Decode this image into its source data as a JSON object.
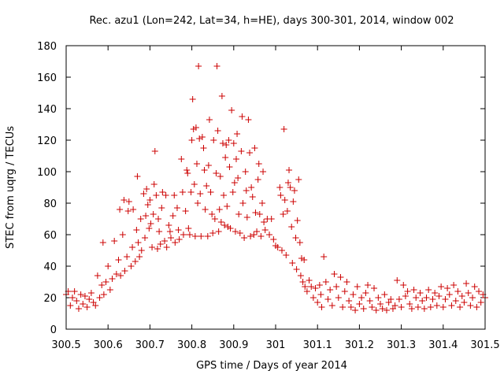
{
  "chart_data": {
    "type": "scatter",
    "title": "Rec. azu1 (Lon=242, Lat=34, h=HE), days 300-301, 2014, window 002",
    "xlabel": "GPS time / Days of year 2014",
    "ylabel": "STEC from uqrg / TECUs",
    "xlim": [
      300.5,
      301.5
    ],
    "ylim": [
      0,
      180
    ],
    "x_ticks": [
      300.5,
      300.6,
      300.7,
      300.8,
      300.9,
      301.0,
      301.1,
      301.2,
      301.3,
      301.4,
      301.5
    ],
    "x_tick_labels": [
      "300.5",
      "300.6",
      "300.7",
      "300.8",
      "300.9",
      "301",
      "301.1",
      "301.2",
      "301.3",
      "301.4",
      "301.5"
    ],
    "y_ticks": [
      0,
      20,
      40,
      60,
      80,
      100,
      120,
      140,
      160,
      180
    ],
    "y_tick_labels": [
      "0",
      "20",
      "40",
      "60",
      "80",
      "100",
      "120",
      "140",
      "160",
      "180"
    ],
    "grid": false,
    "marker": "+",
    "color": "#cc0000",
    "series": [
      {
        "name": "STEC",
        "points": [
          [
            300.5,
            22
          ],
          [
            300.505,
            24
          ],
          [
            300.51,
            15
          ],
          [
            300.515,
            20
          ],
          [
            300.52,
            24
          ],
          [
            300.525,
            18
          ],
          [
            300.53,
            13
          ],
          [
            300.535,
            22
          ],
          [
            300.54,
            16
          ],
          [
            300.545,
            21
          ],
          [
            300.55,
            14
          ],
          [
            300.555,
            19
          ],
          [
            300.56,
            23
          ],
          [
            300.565,
            17
          ],
          [
            300.57,
            15
          ],
          [
            300.575,
            34
          ],
          [
            300.58,
            20
          ],
          [
            300.585,
            28
          ],
          [
            300.588,
            55
          ],
          [
            300.59,
            22
          ],
          [
            300.595,
            30
          ],
          [
            300.6,
            40
          ],
          [
            300.605,
            25
          ],
          [
            300.61,
            32
          ],
          [
            300.615,
            56
          ],
          [
            300.62,
            35
          ],
          [
            300.625,
            44
          ],
          [
            300.628,
            76
          ],
          [
            300.63,
            34
          ],
          [
            300.635,
            60
          ],
          [
            300.638,
            82
          ],
          [
            300.64,
            37
          ],
          [
            300.645,
            46
          ],
          [
            300.648,
            75
          ],
          [
            300.65,
            81
          ],
          [
            300.655,
            40
          ],
          [
            300.658,
            52
          ],
          [
            300.66,
            76
          ],
          [
            300.665,
            43
          ],
          [
            300.668,
            63
          ],
          [
            300.67,
            97
          ],
          [
            300.672,
            55
          ],
          [
            300.675,
            46
          ],
          [
            300.678,
            70
          ],
          [
            300.68,
            50
          ],
          [
            300.685,
            86
          ],
          [
            300.688,
            58
          ],
          [
            300.69,
            72
          ],
          [
            300.692,
            89
          ],
          [
            300.695,
            79
          ],
          [
            300.698,
            64
          ],
          [
            300.7,
            82
          ],
          [
            300.702,
            67
          ],
          [
            300.705,
            52
          ],
          [
            300.708,
            73
          ],
          [
            300.71,
            92
          ],
          [
            300.712,
            113
          ],
          [
            300.715,
            85
          ],
          [
            300.718,
            51
          ],
          [
            300.72,
            70
          ],
          [
            300.722,
            62
          ],
          [
            300.725,
            54
          ],
          [
            300.728,
            77
          ],
          [
            300.73,
            87
          ],
          [
            300.735,
            56
          ],
          [
            300.738,
            85
          ],
          [
            300.74,
            52
          ],
          [
            300.745,
            66
          ],
          [
            300.748,
            62
          ],
          [
            300.75,
            58
          ],
          [
            300.755,
            72
          ],
          [
            300.758,
            85
          ],
          [
            300.76,
            55
          ],
          [
            300.765,
            77
          ],
          [
            300.768,
            63
          ],
          [
            300.77,
            57
          ],
          [
            300.775,
            108
          ],
          [
            300.778,
            87
          ],
          [
            300.78,
            60
          ],
          [
            300.785,
            75
          ],
          [
            300.788,
            101
          ],
          [
            300.79,
            99
          ],
          [
            300.792,
            64
          ],
          [
            300.795,
            60
          ],
          [
            300.798,
            87
          ],
          [
            300.8,
            120
          ],
          [
            300.802,
            146
          ],
          [
            300.804,
            127
          ],
          [
            300.806,
            92
          ],
          [
            300.808,
            59
          ],
          [
            300.81,
            128
          ],
          [
            300.812,
            105
          ],
          [
            300.814,
            80
          ],
          [
            300.816,
            167
          ],
          [
            300.818,
            121
          ],
          [
            300.82,
            86
          ],
          [
            300.822,
            59
          ],
          [
            300.825,
            122
          ],
          [
            300.828,
            115
          ],
          [
            300.83,
            101
          ],
          [
            300.832,
            76
          ],
          [
            300.835,
            91
          ],
          [
            300.838,
            59
          ],
          [
            300.84,
            104
          ],
          [
            300.842,
            133
          ],
          [
            300.845,
            87
          ],
          [
            300.848,
            73
          ],
          [
            300.85,
            61
          ],
          [
            300.852,
            120
          ],
          [
            300.855,
            70
          ],
          [
            300.858,
            99
          ],
          [
            300.86,
            167
          ],
          [
            300.862,
            126
          ],
          [
            300.864,
            62
          ],
          [
            300.866,
            76
          ],
          [
            300.868,
            97
          ],
          [
            300.87,
            68
          ],
          [
            300.872,
            148
          ],
          [
            300.874,
            118
          ],
          [
            300.876,
            85
          ],
          [
            300.878,
            66
          ],
          [
            300.88,
            109
          ],
          [
            300.882,
            117
          ],
          [
            300.884,
            78
          ],
          [
            300.886,
            65
          ],
          [
            300.888,
            120
          ],
          [
            300.89,
            103
          ],
          [
            300.892,
            64
          ],
          [
            300.895,
            139
          ],
          [
            300.898,
            87
          ],
          [
            300.9,
            118
          ],
          [
            300.902,
            93
          ],
          [
            300.904,
            62
          ],
          [
            300.906,
            108
          ],
          [
            300.908,
            124
          ],
          [
            300.91,
            96
          ],
          [
            300.912,
            73
          ],
          [
            300.915,
            61
          ],
          [
            300.918,
            113
          ],
          [
            300.92,
            135
          ],
          [
            300.922,
            80
          ],
          [
            300.925,
            58
          ],
          [
            300.928,
            100
          ],
          [
            300.93,
            88
          ],
          [
            300.932,
            71
          ],
          [
            300.935,
            133
          ],
          [
            300.938,
            112
          ],
          [
            300.94,
            59
          ],
          [
            300.942,
            90
          ],
          [
            300.945,
            84
          ],
          [
            300.948,
            60
          ],
          [
            300.95,
            115
          ],
          [
            300.952,
            74
          ],
          [
            300.955,
            62
          ],
          [
            300.958,
            95
          ],
          [
            300.96,
            105
          ],
          [
            300.962,
            73
          ],
          [
            300.965,
            59
          ],
          [
            300.968,
            80
          ],
          [
            300.97,
            100
          ],
          [
            300.972,
            68
          ],
          [
            300.975,
            63
          ],
          [
            300.98,
            70
          ],
          [
            300.985,
            60
          ],
          [
            300.99,
            70
          ],
          [
            300.995,
            57
          ],
          [
            301.0,
            53
          ],
          [
            301.005,
            52
          ],
          [
            301.01,
            90
          ],
          [
            301.012,
            85
          ],
          [
            301.015,
            50
          ],
          [
            301.018,
            73
          ],
          [
            301.02,
            127
          ],
          [
            301.022,
            82
          ],
          [
            301.025,
            47
          ],
          [
            301.028,
            75
          ],
          [
            301.03,
            93
          ],
          [
            301.032,
            101
          ],
          [
            301.035,
            90
          ],
          [
            301.038,
            65
          ],
          [
            301.04,
            42
          ],
          [
            301.042,
            81
          ],
          [
            301.045,
            88
          ],
          [
            301.048,
            58
          ],
          [
            301.05,
            38
          ],
          [
            301.052,
            69
          ],
          [
            301.055,
            95
          ],
          [
            301.058,
            55
          ],
          [
            301.06,
            34
          ],
          [
            301.062,
            45
          ],
          [
            301.065,
            30
          ],
          [
            301.068,
            44
          ],
          [
            301.07,
            27
          ],
          [
            301.075,
            24
          ],
          [
            301.08,
            31
          ],
          [
            301.085,
            27
          ],
          [
            301.09,
            20
          ],
          [
            301.095,
            26
          ],
          [
            301.1,
            17
          ],
          [
            301.105,
            28
          ],
          [
            301.108,
            22
          ],
          [
            301.11,
            14
          ],
          [
            301.115,
            46
          ],
          [
            301.12,
            30
          ],
          [
            301.125,
            19
          ],
          [
            301.13,
            25
          ],
          [
            301.135,
            15
          ],
          [
            301.14,
            35
          ],
          [
            301.145,
            27
          ],
          [
            301.15,
            20
          ],
          [
            301.155,
            33
          ],
          [
            301.16,
            14
          ],
          [
            301.165,
            24
          ],
          [
            301.17,
            30
          ],
          [
            301.175,
            18
          ],
          [
            301.18,
            14
          ],
          [
            301.185,
            22
          ],
          [
            301.19,
            12
          ],
          [
            301.195,
            27
          ],
          [
            301.2,
            16
          ],
          [
            301.205,
            20
          ],
          [
            301.21,
            13
          ],
          [
            301.215,
            23
          ],
          [
            301.22,
            28
          ],
          [
            301.225,
            18
          ],
          [
            301.23,
            14
          ],
          [
            301.235,
            26
          ],
          [
            301.24,
            12
          ],
          [
            301.245,
            20
          ],
          [
            301.25,
            16
          ],
          [
            301.255,
            13
          ],
          [
            301.26,
            22
          ],
          [
            301.265,
            12
          ],
          [
            301.27,
            17
          ],
          [
            301.275,
            19
          ],
          [
            301.28,
            13
          ],
          [
            301.285,
            15
          ],
          [
            301.29,
            31
          ],
          [
            301.295,
            19
          ],
          [
            301.3,
            14
          ],
          [
            301.305,
            28
          ],
          [
            301.31,
            21
          ],
          [
            301.315,
            24
          ],
          [
            301.32,
            16
          ],
          [
            301.325,
            13
          ],
          [
            301.33,
            25
          ],
          [
            301.335,
            20
          ],
          [
            301.34,
            14
          ],
          [
            301.345,
            23
          ],
          [
            301.35,
            18
          ],
          [
            301.355,
            13
          ],
          [
            301.36,
            20
          ],
          [
            301.365,
            25
          ],
          [
            301.37,
            14
          ],
          [
            301.375,
            19
          ],
          [
            301.38,
            23
          ],
          [
            301.385,
            15
          ],
          [
            301.39,
            21
          ],
          [
            301.395,
            27
          ],
          [
            301.4,
            14
          ],
          [
            301.405,
            19
          ],
          [
            301.41,
            26
          ],
          [
            301.415,
            22
          ],
          [
            301.42,
            15
          ],
          [
            301.425,
            28
          ],
          [
            301.43,
            18
          ],
          [
            301.435,
            24
          ],
          [
            301.44,
            14
          ],
          [
            301.445,
            21
          ],
          [
            301.45,
            17
          ],
          [
            301.455,
            29
          ],
          [
            301.46,
            23
          ],
          [
            301.465,
            15
          ],
          [
            301.47,
            20
          ],
          [
            301.475,
            27
          ],
          [
            301.48,
            14
          ],
          [
            301.485,
            24
          ],
          [
            301.49,
            17
          ],
          [
            301.495,
            22
          ],
          [
            301.5,
            20
          ]
        ]
      }
    ]
  }
}
